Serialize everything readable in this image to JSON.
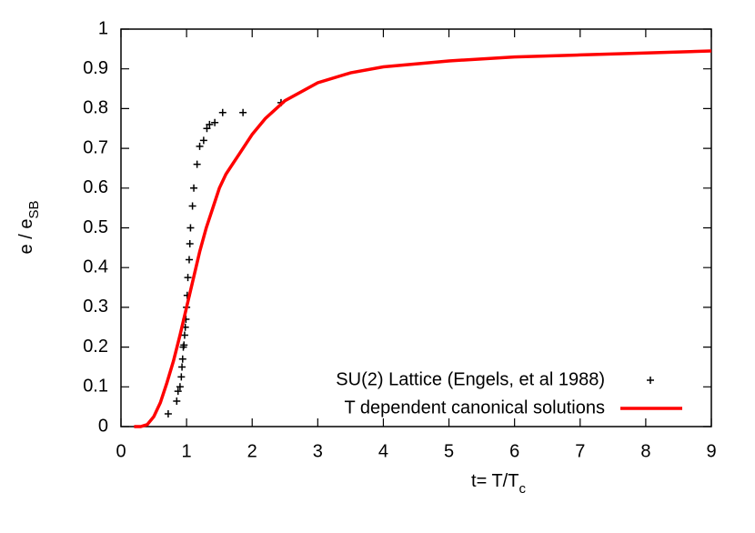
{
  "chart_data": {
    "type": "line",
    "xlabel": {
      "text": "t= T/T",
      "sub": "c"
    },
    "ylabel": {
      "text": "e / e",
      "sub": "SB"
    },
    "xlim": [
      0,
      9
    ],
    "ylim": [
      0,
      1
    ],
    "xticks": [
      0,
      1,
      2,
      3,
      4,
      5,
      6,
      7,
      8,
      9
    ],
    "yticks": [
      0,
      0.1,
      0.2,
      0.3,
      0.4,
      0.5,
      0.6,
      0.7,
      0.8,
      0.9,
      1
    ],
    "legend": "lower right",
    "series": [
      {
        "name": "SU(2) Lattice (Engels, et al 1988)",
        "type": "scatter",
        "color": "#000000",
        "x": [
          0.72,
          0.85,
          0.87,
          0.9,
          0.92,
          0.93,
          0.94,
          0.95,
          0.96,
          0.97,
          0.98,
          0.99,
          1.0,
          1.01,
          1.02,
          1.04,
          1.05,
          1.06,
          1.09,
          1.11,
          1.16,
          1.2,
          1.26,
          1.31,
          1.35,
          1.43,
          1.55,
          1.86,
          2.44
        ],
        "values": [
          0.032,
          0.064,
          0.089,
          0.1,
          0.125,
          0.15,
          0.17,
          0.2,
          0.205,
          0.23,
          0.25,
          0.27,
          0.3,
          0.33,
          0.375,
          0.42,
          0.46,
          0.5,
          0.555,
          0.6,
          0.66,
          0.705,
          0.72,
          0.75,
          0.76,
          0.765,
          0.79,
          0.79,
          0.815
        ]
      },
      {
        "name": "T dependent canonical solutions",
        "type": "line",
        "color": "#ff0000",
        "x": [
          0.2,
          0.3,
          0.4,
          0.5,
          0.6,
          0.7,
          0.8,
          0.9,
          1.0,
          1.1,
          1.2,
          1.3,
          1.4,
          1.5,
          1.6,
          1.8,
          2.0,
          2.2,
          2.5,
          3,
          3.5,
          4,
          5,
          6,
          7,
          8,
          9
        ],
        "values": [
          0,
          0,
          0.005,
          0.025,
          0.06,
          0.11,
          0.165,
          0.23,
          0.3,
          0.37,
          0.44,
          0.5,
          0.55,
          0.6,
          0.635,
          0.685,
          0.735,
          0.775,
          0.82,
          0.865,
          0.89,
          0.905,
          0.92,
          0.93,
          0.935,
          0.94,
          0.945
        ]
      }
    ]
  }
}
